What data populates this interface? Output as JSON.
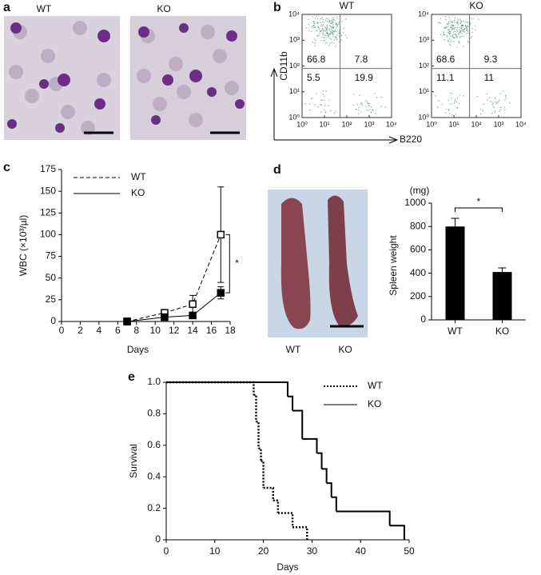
{
  "panels": {
    "a": {
      "label": "a",
      "images": [
        "WT",
        "KO"
      ]
    },
    "d": {
      "photo_labels": [
        "WT",
        "KO"
      ]
    }
  },
  "chart_data": [
    {
      "type": "flow",
      "panel": "b",
      "title": "WT",
      "xlabel": "B220",
      "ylabel": "CD11b",
      "log_scale": true,
      "xlim": [
        1,
        10000
      ],
      "ylim": [
        1,
        10000
      ],
      "xticks": [
        {
          "value": 1,
          "label": "10⁰"
        },
        {
          "value": 10,
          "label": "10¹"
        },
        {
          "value": 100,
          "label": "10²"
        },
        {
          "value": 1000,
          "label": "10³"
        },
        {
          "value": 10000,
          "label": "10⁴"
        }
      ],
      "yticks": [
        {
          "value": 1,
          "label": "10⁰"
        },
        {
          "value": 10,
          "label": "10¹"
        },
        {
          "value": 100,
          "label": "10²"
        },
        {
          "value": 1000,
          "label": "10³"
        },
        {
          "value": 10000,
          "label": "10⁴"
        }
      ],
      "gates": [
        50,
        80
      ],
      "gate_color": "#b040b0",
      "dot_color": "#4f8a78",
      "quadrant_values": [
        66.8,
        7.8,
        5.5,
        19.9
      ]
    },
    {
      "type": "flow",
      "title": "KO",
      "log_scale": true,
      "xlim": [
        1,
        10000
      ],
      "ylim": [
        1,
        10000
      ],
      "xticks": [
        {
          "value": 1,
          "label": "10⁰"
        },
        {
          "value": 10,
          "label": "10¹"
        },
        {
          "value": 100,
          "label": "10²"
        },
        {
          "value": 1000,
          "label": "10³"
        },
        {
          "value": 10000,
          "label": "10⁴"
        }
      ],
      "yticks": [
        {
          "value": 1,
          "label": "10⁰"
        },
        {
          "value": 10,
          "label": "10¹"
        },
        {
          "value": 100,
          "label": "10²"
        },
        {
          "value": 1000,
          "label": "10³"
        },
        {
          "value": 10000,
          "label": "10⁴"
        }
      ],
      "gates": [
        50,
        80
      ],
      "gate_color": "#b040b0",
      "dot_color": "#4f8a78",
      "quadrant_values": [
        68.6,
        9.3,
        11.1,
        11.0
      ]
    },
    {
      "type": "line",
      "panel": "c",
      "xlabel": "Days",
      "ylabel": "WBC (×10³/µl)",
      "x": [
        7,
        11,
        14,
        17
      ],
      "xlim": [
        0,
        18
      ],
      "xticks": [
        0,
        2,
        4,
        6,
        8,
        10,
        12,
        14,
        16,
        18
      ],
      "ylim": [
        0,
        175
      ],
      "yticks": [
        0,
        25,
        50,
        75,
        100,
        125,
        150,
        175
      ],
      "series": [
        {
          "name": "WT",
          "color": "#000000",
          "dashed": true,
          "filled": false,
          "values": [
            0,
            10,
            20,
            100
          ],
          "errors": [
            2,
            3,
            10,
            55
          ]
        },
        {
          "name": "KO",
          "color": "#000000",
          "dashed": false,
          "filled": true,
          "values": [
            0,
            5,
            7,
            33
          ],
          "errors": [
            1,
            1,
            2,
            7
          ]
        }
      ],
      "annotation": "*"
    },
    {
      "type": "bar",
      "panel": "d",
      "ylabel": "Spleen weight",
      "unit": "(mg)",
      "categories": [
        "WT",
        "KO"
      ],
      "values": [
        800,
        410
      ],
      "errors": [
        70,
        35
      ],
      "color": "#000000",
      "ylim": [
        0,
        1000
      ],
      "yticks": [
        0,
        200,
        400,
        600,
        800,
        1000
      ],
      "annotation": "*"
    },
    {
      "type": "step",
      "panel": "e",
      "xlabel": "Days",
      "ylabel": "Survival",
      "xlim": [
        0,
        50
      ],
      "xticks": [
        0,
        10,
        20,
        30,
        40,
        50
      ],
      "ylim": [
        0,
        1
      ],
      "yticks": [
        0,
        0.2,
        0.4,
        0.6,
        0.8,
        {
          "value": 1,
          "label": "1.0"
        }
      ],
      "series": [
        {
          "name": "WT",
          "color": "#000000",
          "dotted": true,
          "x": [
            0,
            18,
            18.5,
            19,
            19.5,
            20,
            22,
            23,
            26,
            29
          ],
          "values": [
            1,
            0.92,
            0.75,
            0.58,
            0.5,
            0.33,
            0.25,
            0.17,
            0.08,
            0
          ]
        },
        {
          "name": "KO",
          "color": "#000000",
          "dotted": false,
          "x": [
            0,
            25,
            26,
            28,
            31,
            32,
            33,
            34,
            35,
            46,
            49
          ],
          "values": [
            1,
            0.91,
            0.82,
            0.64,
            0.55,
            0.45,
            0.36,
            0.27,
            0.18,
            0.09,
            0
          ]
        }
      ]
    }
  ]
}
